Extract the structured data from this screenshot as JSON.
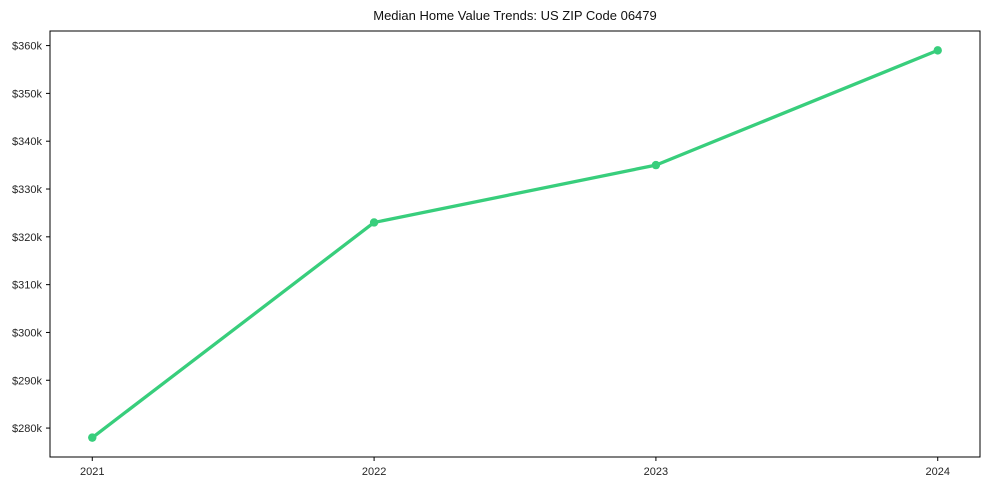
{
  "chart_data": {
    "type": "line",
    "title": "Median Home Value Trends: US ZIP Code 06479",
    "series_name": "Median Home Value",
    "unit": "USD",
    "x": [
      2021,
      2022,
      2023,
      2024
    ],
    "x_labels": [
      "2021",
      "2022",
      "2023",
      "2024"
    ],
    "values": [
      278000,
      323000,
      335000,
      359000
    ],
    "y_ticks": [
      {
        "value": 280000,
        "label": "$280k"
      },
      {
        "value": 290000,
        "label": "$290k"
      },
      {
        "value": 300000,
        "label": "$300k"
      },
      {
        "value": 310000,
        "label": "$310k"
      },
      {
        "value": 320000,
        "label": "$320k"
      },
      {
        "value": 330000,
        "label": "$330k"
      },
      {
        "value": 340000,
        "label": "$340k"
      },
      {
        "value": 350000,
        "label": "$350k"
      },
      {
        "value": 360000,
        "label": "$360k"
      }
    ],
    "xlim": [
      2020.85,
      2024.15
    ],
    "ylim": [
      273950,
      363050
    ],
    "grid": false,
    "legend": false,
    "colors": {
      "line": "#38CE7C",
      "frame": "#000000",
      "tick_label": "#262626",
      "background": "#ffffff"
    }
  }
}
